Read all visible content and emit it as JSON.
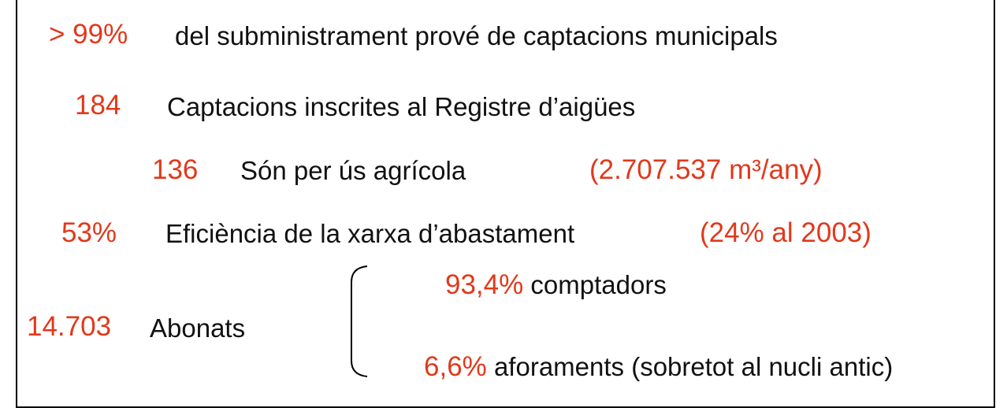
{
  "rows": [
    {
      "value": "> 99%",
      "label": "del subministrament prové de captacions municipals"
    },
    {
      "value": "184",
      "label": "Captacions inscrites al Registre d’aigües"
    },
    {
      "value": "136",
      "label": "Són per ús agrícola",
      "note": "(2.707.537 m³/any)"
    },
    {
      "value": "53%",
      "label": "Eficiència de la xarxa d’abastament",
      "note": "(24% al 2003)"
    },
    {
      "value": "14.703",
      "label": "Abonats",
      "breakdown": [
        {
          "value": "93,4%",
          "label": "comptadors"
        },
        {
          "value": "6,6%",
          "label": "aforaments (sobretot al nucli antic)"
        }
      ]
    }
  ]
}
